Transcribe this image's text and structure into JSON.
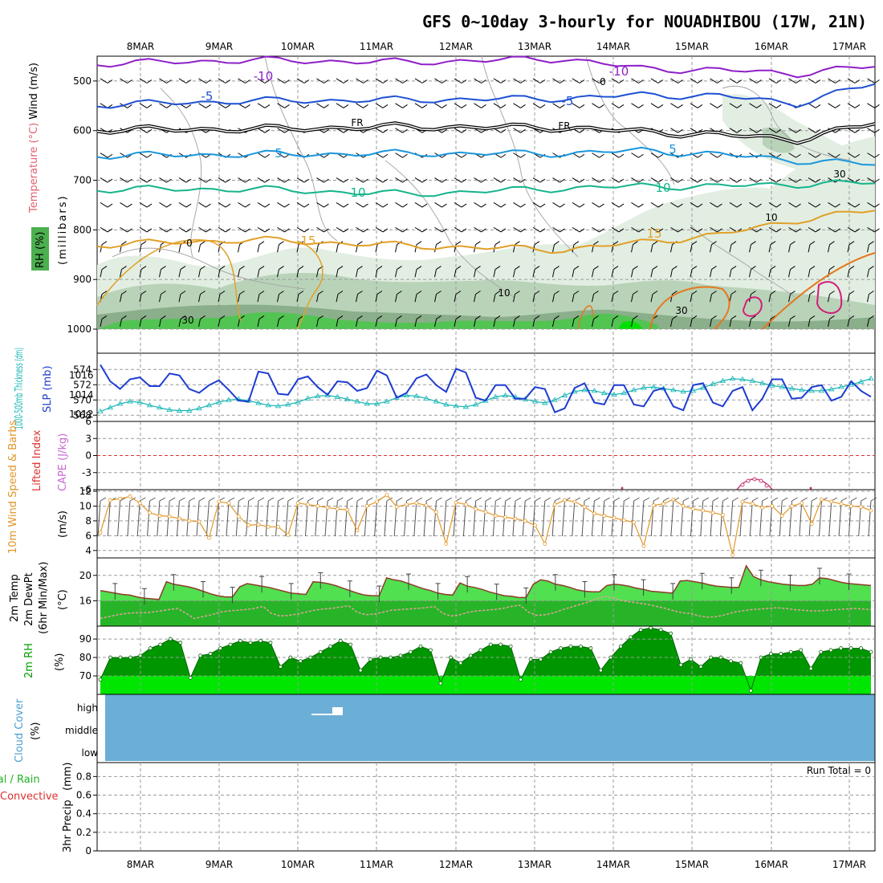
{
  "title": "GFS 0~10day 3-hourly for NOUADHIBOU (17W, 21N)",
  "dates": [
    "8MAR",
    "9MAR",
    "10MAR",
    "11MAR",
    "12MAR",
    "13MAR",
    "14MAR",
    "15MAR",
    "16MAR",
    "17MAR"
  ],
  "colors": {
    "wind_barb": "#000000",
    "temp_m10": "#8e1fc8",
    "temp_m5": "#1e50d2",
    "temp_fr": "#000000",
    "temp_5": "#1a96dc",
    "temp_10": "#14b48c",
    "temp_15": "#e1a028",
    "temp_20": "#e6781e",
    "temp_25": "#d21e78",
    "rh_light": "#e2eee2",
    "rh_mid": "#b9d3b9",
    "rh_dark": "#8aaf8a",
    "rh_green": "#52c452",
    "rh_bright": "#00e000",
    "slp_line": "#1e3cd2",
    "thickness_line": "#14b4b4",
    "cape_line": "#c83c78",
    "lifted_zero": "#dc3232",
    "wind10m": "#e19628",
    "temp2m_fill": "#50e050",
    "dewpt_fill": "#28b428",
    "temp2m_line": "#8c3c28",
    "rh_fill_dark": "#009600",
    "rh_fill_bright": "#00e600",
    "cloud_fill": "#6baed6"
  },
  "panels": {
    "upper_air": {
      "ylabel_wind": "Wind (m/s)",
      "ylabel_temp": "Temperature (°C)",
      "ylabel_rh": "RH (%)",
      "ylabel_unit": "(millibars)",
      "contour_labels": [
        "-10",
        "-10",
        "-5",
        "-5",
        "FR",
        "FR",
        "5",
        "5",
        "10",
        "10",
        "15",
        "15",
        "0",
        "0",
        "10",
        "10",
        "30",
        "30",
        "30"
      ]
    },
    "slp": {
      "ylabel_thickness": "1000-500mb Thickness (dm)",
      "ylabel_slp": "SLP (mb)"
    },
    "cape": {
      "ylabel_lifted": "Lifted Index",
      "ylabel_cape": "CAPE (J/kg)"
    },
    "wind10m": {
      "ylabel_main": "10m Wind Speed & Barbs",
      "ylabel_unit": "(m/s)"
    },
    "temp2m": {
      "ylabel_a": "2m Temp",
      "ylabel_b": "2m DewPt",
      "ylabel_c": "(6hr Min/Max)",
      "ylabel_unit": "(°C)"
    },
    "rh2m": {
      "ylabel_main": "2m RH",
      "ylabel_unit": "(%)"
    },
    "cloud": {
      "ylabel_main": "Cloud Cover",
      "ylabel_unit": "(%)",
      "levels": [
        "high",
        "middle",
        "low"
      ]
    },
    "precip": {
      "ylabel_a": "Total / Rain",
      "ylabel_b": "Convective",
      "ylabel_main": "3hr Precip",
      "ylabel_unit": "(mm)",
      "run_total": "Run Total = 0"
    }
  },
  "chart_data": [
    {
      "type": "line",
      "panel": "upper_air",
      "yticks": [
        500,
        600,
        700,
        800,
        900,
        1000
      ],
      "ylim": [
        450,
        1000
      ],
      "ytick_labels": [
        "500",
        "600",
        "700",
        "800",
        "900",
        "1000"
      ],
      "series": [
        {
          "name": "-10",
          "x": [
            0,
            2,
            4,
            6,
            7,
            8,
            9,
            10
          ],
          "values": [
            465,
            458,
            462,
            455,
            475,
            478,
            485,
            470
          ]
        },
        {
          "name": "-5",
          "x": [
            0,
            2,
            4,
            6,
            7,
            8,
            9,
            10
          ],
          "values": [
            548,
            540,
            538,
            535,
            528,
            530,
            545,
            505
          ]
        },
        {
          "name": "FR",
          "x": [
            0,
            2,
            4,
            6,
            7,
            8,
            9,
            10
          ],
          "values": [
            598,
            597,
            592,
            594,
            602,
            608,
            618,
            585
          ]
        },
        {
          "name": "5",
          "x": [
            0,
            2,
            4,
            6,
            7,
            8,
            9,
            10
          ],
          "values": [
            650,
            648,
            646,
            646,
            640,
            648,
            660,
            668
          ]
        },
        {
          "name": "10",
          "x": [
            0,
            2,
            4,
            6,
            7,
            8,
            9,
            10
          ],
          "values": [
            718,
            718,
            728,
            716,
            712,
            712,
            708,
            705
          ]
        },
        {
          "name": "15",
          "x": [
            0,
            2,
            4,
            6,
            7,
            8,
            9,
            10
          ],
          "values": [
            830,
            820,
            832,
            840,
            825,
            810,
            780,
            760
          ]
        }
      ]
    },
    {
      "type": "line",
      "panel": "slp",
      "yticks_left": [
        568,
        570,
        572,
        574
      ],
      "yticks_right": [
        1012,
        1014,
        1016
      ],
      "ylim_left": [
        567.5,
        575.5
      ],
      "ylim_right": [
        1011.5,
        1017.8
      ],
      "series": [
        {
          "name": "SLP (mb)",
          "values": [
            1017.1,
            1015.4,
            1014.6,
            1015.6,
            1015.8,
            1014.9,
            1014.9,
            1016.2,
            1016.0,
            1014.6,
            1014.2,
            1015.0,
            1015.5,
            1014.5,
            1013.4,
            1013.3,
            1016.4,
            1016.2,
            1014.1,
            1014.0,
            1015.6,
            1015.9,
            1014.8,
            1014.0,
            1015.4,
            1015.3,
            1014.4,
            1014.7,
            1016.5,
            1016.0,
            1013.7,
            1014.2,
            1015.7,
            1016.1,
            1015.0,
            1014.3,
            1016.7,
            1016.3,
            1013.7,
            1013.4,
            1015.0,
            1015.0,
            1013.6,
            1013.6,
            1014.8,
            1014.6,
            1012.2,
            1012.6,
            1014.7,
            1015.2,
            1013.2,
            1013.0,
            1015.0,
            1015.0,
            1013.0,
            1012.8,
            1014.4,
            1014.7,
            1012.8,
            1012.4,
            1015.0,
            1015.2,
            1013.2,
            1012.8,
            1014.4,
            1014.8,
            1012.4,
            1013.6,
            1015.6,
            1015.6,
            1013.6,
            1013.7,
            1014.8,
            1015.0,
            1013.4,
            1013.8,
            1015.4,
            1014.4,
            1013.8
          ]
        },
        {
          "name": "1000-500mb Thickness (dm)",
          "values": [
            568.5,
            569.0,
            569.5,
            569.8,
            569.7,
            569.3,
            569.0,
            568.7,
            568.6,
            568.6,
            568.9,
            569.3,
            569.7,
            570.0,
            570.1,
            569.9,
            569.6,
            569.3,
            569.2,
            569.4,
            569.7,
            570.2,
            570.5,
            570.6,
            570.4,
            570.1,
            569.8,
            569.5,
            569.5,
            569.8,
            570.3,
            570.6,
            570.5,
            570.2,
            569.8,
            569.4,
            569.2,
            569.1,
            569.4,
            569.9,
            570.4,
            570.6,
            570.4,
            570.1,
            569.8,
            569.6,
            570.0,
            570.6,
            571.1,
            571.3,
            571.2,
            570.9,
            570.7,
            570.9,
            571.3,
            571.6,
            571.7,
            571.5,
            571.3,
            571.1,
            571.2,
            571.6,
            572.1,
            572.5,
            572.8,
            572.7,
            572.5,
            572.2,
            571.9,
            571.7,
            571.5,
            571.3,
            571.2,
            571.2,
            571.4,
            571.7,
            572.0,
            572.4,
            572.8
          ]
        }
      ]
    },
    {
      "type": "line",
      "panel": "cape",
      "yticks": [
        -6,
        -3,
        0,
        3,
        6
      ],
      "ytick_labels": [
        "-6",
        "-3",
        "0",
        "3",
        "6"
      ],
      "ylim": [
        -6,
        6
      ]
    },
    {
      "type": "line",
      "panel": "wind10m",
      "yticks": [
        4,
        6,
        8,
        10,
        12
      ],
      "ylim": [
        3,
        12
      ],
      "series": [
        {
          "name": "10m Wind Speed",
          "values": [
            6.4,
            10.8,
            11.0,
            11.3,
            10.4,
            9.1,
            8.7,
            8.6,
            8.3,
            8.0,
            7.9,
            5.7,
            10.6,
            10.4,
            8.6,
            7.4,
            7.5,
            7.2,
            7.2,
            6.1,
            10.4,
            10.2,
            10.0,
            9.8,
            9.6,
            9.5,
            6.7,
            10.0,
            10.6,
            11.5,
            9.9,
            10.2,
            10.4,
            10.1,
            9.2,
            4.9,
            10.5,
            10.2,
            9.6,
            9.2,
            8.7,
            8.5,
            8.3,
            8.0,
            7.4,
            4.9,
            10.2,
            10.8,
            10.6,
            9.9,
            9.0,
            8.7,
            8.4,
            8.1,
            7.8,
            4.6,
            10.1,
            10.3,
            10.9,
            10.0,
            9.6,
            9.4,
            9.1,
            8.8,
            3.4,
            10.6,
            10.3,
            9.8,
            10.0,
            8.7,
            10.0,
            10.4,
            7.6,
            10.9,
            10.6,
            10.3,
            10.0,
            9.9,
            9.4
          ]
        }
      ]
    },
    {
      "type": "area",
      "panel": "temp2m",
      "yticks": [
        16,
        20
      ],
      "ylim": [
        12,
        22.5
      ],
      "series": [
        {
          "name": "2m Temp",
          "values": [
            17.6,
            17.4,
            17.2,
            17.0,
            16.9,
            16.6,
            16.4,
            16.3,
            16.2,
            19.0,
            18.6,
            18.4,
            18.2,
            17.9,
            17.5,
            17.1,
            16.8,
            16.6,
            16.6,
            18.2,
            18.7,
            18.5,
            18.3,
            18.1,
            17.8,
            17.5,
            17.2,
            17.1,
            17.0,
            19.0,
            18.9,
            18.7,
            18.4,
            18.0,
            17.6,
            17.2,
            16.9,
            16.8,
            16.8,
            19.6,
            19.3,
            19.1,
            18.7,
            18.3,
            17.9,
            17.6,
            17.2,
            17.0,
            16.9,
            18.8,
            18.3,
            18.1,
            17.8,
            17.4,
            17.1,
            16.8,
            16.7,
            16.5,
            16.5,
            18.6,
            19.3,
            19.1,
            18.6,
            18.4,
            18.1,
            17.7,
            17.5,
            17.4,
            17.4,
            18.4,
            18.6,
            18.5,
            18.3,
            18.0,
            17.8,
            17.5,
            17.4,
            17.3,
            17.2,
            19.1,
            19.2,
            19.0,
            18.8,
            18.5,
            18.3,
            18.2,
            18.1,
            18.1,
            21.5,
            19.8,
            19.3,
            19.0,
            18.8,
            18.6,
            18.5,
            18.4,
            18.4,
            18.6,
            19.6,
            19.5,
            19.2,
            18.9,
            18.7,
            18.6,
            18.5,
            18.4
          ]
        },
        {
          "name": "2m DewPt",
          "values": [
            13.2,
            13.5,
            13.8,
            14.0,
            14.1,
            14.1,
            14.2,
            14.4,
            14.6,
            14.8,
            14.0,
            13.2,
            13.5,
            13.8,
            14.2,
            14.4,
            14.5,
            14.6,
            14.8,
            15.1,
            14.0,
            13.6,
            13.7,
            13.9,
            14.2,
            14.5,
            14.7,
            14.8,
            15.0,
            15.2,
            14.2,
            13.8,
            13.9,
            14.2,
            14.5,
            14.6,
            14.7,
            14.8,
            14.9,
            15.1,
            14.0,
            13.6,
            13.8,
            14.2,
            14.4,
            14.5,
            14.6,
            14.8,
            15.1,
            15.3,
            14.2,
            13.7,
            13.8,
            14.1,
            14.6,
            15.0,
            15.4,
            15.8,
            16.3,
            16.7,
            16.4,
            16.0,
            15.8,
            15.6,
            15.4,
            15.1,
            14.8,
            14.4,
            14.1,
            14.0,
            13.6,
            13.4,
            13.5,
            13.8,
            14.2,
            14.4,
            14.6,
            14.7,
            14.8,
            14.9,
            14.8,
            14.6,
            14.5,
            14.4,
            14.4,
            14.5,
            14.6,
            14.7,
            14.8,
            14.7,
            14.6
          ]
        }
      ]
    },
    {
      "type": "area",
      "panel": "rh2m",
      "yticks": [
        70,
        80,
        90
      ],
      "ylim": [
        60,
        97
      ],
      "series": [
        {
          "name": "2m RH",
          "values": [
            68,
            80,
            80,
            80,
            81,
            85,
            87,
            90,
            88,
            69,
            81,
            82,
            85,
            87,
            89,
            88,
            89,
            88,
            75,
            80,
            78,
            80,
            83,
            86,
            89,
            87,
            73,
            79,
            80,
            80,
            81,
            83,
            86,
            84,
            66,
            80,
            77,
            81,
            84,
            87,
            87,
            86,
            68,
            79,
            79,
            83,
            85,
            86,
            86,
            85,
            73,
            80,
            86,
            91,
            95,
            96,
            95,
            93,
            76,
            79,
            75,
            80,
            80,
            78,
            77,
            62,
            80,
            82,
            82,
            83,
            84,
            74,
            83,
            84,
            85,
            85,
            85,
            83
          ]
        }
      ]
    },
    {
      "type": "area",
      "panel": "cloud",
      "categories": [
        "high",
        "middle",
        "low"
      ],
      "series": [
        {
          "name": "high",
          "x": [
            10.3,
            10.5,
            10.6
          ],
          "values": [
            1,
            4,
            4
          ]
        }
      ]
    },
    {
      "type": "bar",
      "panel": "precip",
      "yticks": [
        0,
        0.2,
        0.4,
        0.6,
        0.8
      ],
      "ytick_labels": [
        "0",
        "0.2",
        "0.4",
        "0.6",
        "0.8"
      ],
      "ylim": [
        0,
        0.95
      ],
      "values": []
    }
  ]
}
